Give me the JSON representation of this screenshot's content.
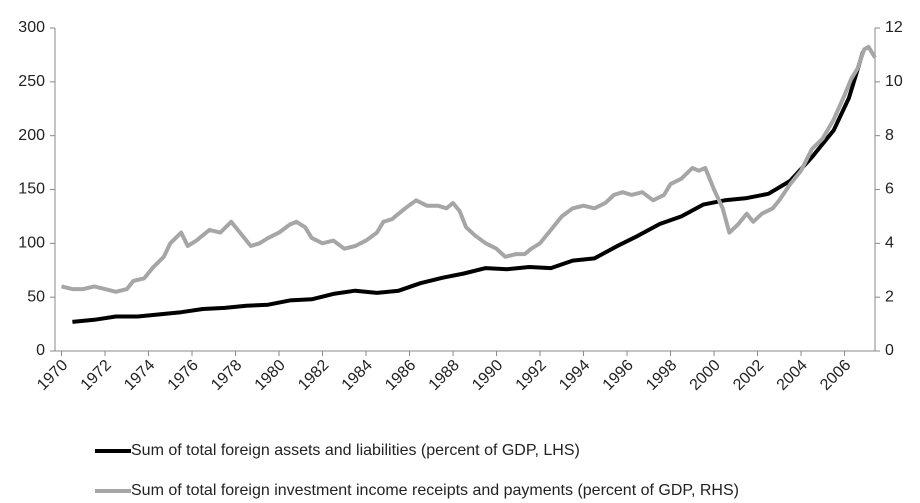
{
  "chart_data": {
    "type": "line",
    "xlim": [
      1969.7,
      2007.4
    ],
    "xticks": [
      1970,
      1972,
      1974,
      1976,
      1978,
      1980,
      1982,
      1984,
      1986,
      1988,
      1990,
      1992,
      1994,
      1996,
      1998,
      2000,
      2002,
      2004,
      2006
    ],
    "ylim": [
      0,
      300
    ],
    "yticks": [
      0,
      50,
      100,
      150,
      200,
      250,
      300
    ],
    "y2lim": [
      0,
      12
    ],
    "y2ticks": [
      0,
      2,
      4,
      6,
      8,
      10,
      12
    ],
    "series": [
      {
        "name": "Sum of total foreign assets and liabilities (percent of GDP, LHS)",
        "color": "#000000",
        "axis": "y",
        "x": [
          1970.5,
          1971.5,
          1972.5,
          1973.5,
          1974.5,
          1975.5,
          1976.5,
          1977.5,
          1978.5,
          1979.5,
          1980.5,
          1981.5,
          1982.5,
          1983.5,
          1984.5,
          1985.5,
          1986.5,
          1987.5,
          1988.5,
          1989.5,
          1990.5,
          1991.5,
          1992.5,
          1993.5,
          1994.5,
          1995.5,
          1996.5,
          1997.5,
          1998.5,
          1999.5,
          2000.5,
          2001.5,
          2002.5,
          2003.5,
          2004.5,
          2005.5,
          2006.2,
          2006.85
        ],
        "values": [
          27,
          29,
          32,
          32,
          34,
          36,
          39,
          40,
          42,
          43,
          47,
          48,
          53,
          56,
          54,
          56,
          63,
          68,
          72,
          77,
          76,
          78,
          77,
          84,
          86,
          97,
          107,
          118,
          125,
          136,
          140,
          142,
          146,
          158,
          180,
          205,
          235,
          278
        ]
      },
      {
        "name": "Sum of total foreign investment income receipts and payments (percent of GDP, RHS)",
        "color": "#a6a6a6",
        "axis": "y2",
        "x": [
          1970,
          1970.5,
          1971,
          1971.5,
          1972,
          1972.5,
          1973,
          1973.3,
          1973.8,
          1974.2,
          1974.7,
          1975,
          1975.5,
          1975.8,
          1976.2,
          1976.8,
          1977.3,
          1977.8,
          1978.3,
          1978.7,
          1979.1,
          1979.5,
          1980,
          1980.5,
          1980.8,
          1981.2,
          1981.5,
          1982,
          1982.5,
          1983,
          1983.5,
          1984,
          1984.5,
          1984.8,
          1985.2,
          1985.8,
          1986.3,
          1986.8,
          1987.3,
          1987.7,
          1988,
          1988.3,
          1988.6,
          1989,
          1989.5,
          1990,
          1990.4,
          1990.9,
          1991.3,
          1991.6,
          1992,
          1992.5,
          1993,
          1993.5,
          1994,
          1994.5,
          1995,
          1995.4,
          1995.8,
          1996.2,
          1996.7,
          1997.2,
          1997.7,
          1998,
          1998.5,
          1999,
          1999.3,
          1999.6,
          2000,
          2000.4,
          2000.7,
          2001.1,
          2001.5,
          2001.8,
          2002.2,
          2002.7,
          2003,
          2003.5,
          2004,
          2004.5,
          2005,
          2005.5,
          2006,
          2006.3,
          2006.6,
          2006.9,
          2007.1,
          2007.4
        ],
        "values": [
          2.4,
          2.3,
          2.3,
          2.4,
          2.3,
          2.2,
          2.3,
          2.6,
          2.7,
          3.1,
          3.5,
          4.0,
          4.4,
          3.9,
          4.1,
          4.5,
          4.4,
          4.8,
          4.3,
          3.9,
          4.0,
          4.2,
          4.4,
          4.7,
          4.8,
          4.6,
          4.2,
          4.0,
          4.1,
          3.8,
          3.9,
          4.1,
          4.4,
          4.8,
          4.9,
          5.3,
          5.6,
          5.4,
          5.4,
          5.3,
          5.5,
          5.2,
          4.6,
          4.3,
          4.0,
          3.8,
          3.5,
          3.6,
          3.6,
          3.8,
          4.0,
          4.5,
          5.0,
          5.3,
          5.4,
          5.3,
          5.5,
          5.8,
          5.9,
          5.8,
          5.9,
          5.6,
          5.8,
          6.2,
          6.4,
          6.8,
          6.7,
          6.8,
          6.0,
          5.3,
          4.4,
          4.7,
          5.1,
          4.8,
          5.1,
          5.3,
          5.6,
          6.2,
          6.7,
          7.5,
          7.9,
          8.6,
          9.5,
          10.1,
          10.5,
          11.2,
          11.3,
          10.9
        ]
      }
    ]
  }
}
